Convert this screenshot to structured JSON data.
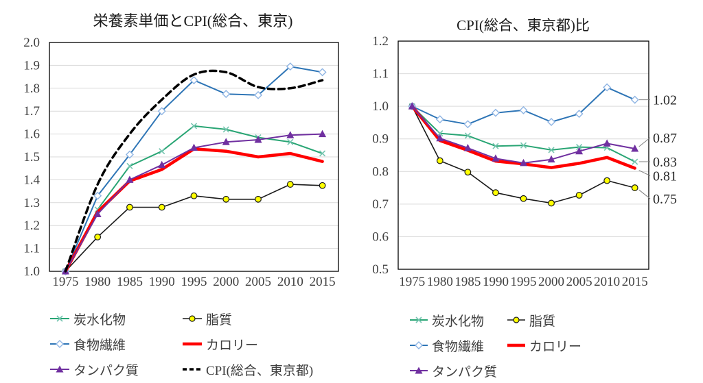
{
  "figure_background": "#FFFFFF",
  "chart_data": [
    {
      "type": "line",
      "title": "栄養素単価とCPI(総合、東京)",
      "x": [
        1975,
        1980,
        1985,
        1990,
        1995,
        2000,
        2005,
        2010,
        2015
      ],
      "xtick_labels": [
        "1975",
        "1980",
        "1985",
        "1990",
        "1995",
        "2000",
        "2005",
        "2010",
        "2015"
      ],
      "ylim": [
        1.0,
        2.0
      ],
      "ytick_labels": [
        "2.0",
        "1.9",
        "1.8",
        "1.7",
        "1.6",
        "1.5",
        "1.4",
        "1.3",
        "1.2",
        "1.1",
        "1.0"
      ],
      "grid": true,
      "legend_position": "bottom",
      "series": [
        {
          "name": "脂質",
          "color": "#1A1A1A",
          "width": 1.6,
          "marker": "circle",
          "marker_fill": "#FFFF00",
          "marker_stroke": "#1A1A1A",
          "values": [
            1.0,
            1.15,
            1.28,
            1.28,
            1.33,
            1.315,
            1.315,
            1.38,
            1.375
          ]
        },
        {
          "name": "炭水化物",
          "color": "#29A574",
          "width": 2,
          "marker": "x",
          "marker_stroke": "#76C5B0",
          "values": [
            1.0,
            1.27,
            1.46,
            1.525,
            1.635,
            1.62,
            1.585,
            1.565,
            1.515
          ]
        },
        {
          "name": "食物繊維",
          "color": "#2E75B6",
          "width": 2,
          "marker": "diamond",
          "marker_fill": "#FFFFFF",
          "marker_stroke": "#8EB4E3",
          "values": [
            1.0,
            1.33,
            1.51,
            1.7,
            1.835,
            1.775,
            1.77,
            1.895,
            1.87
          ]
        },
        {
          "name": "カロリー",
          "color": "#FF0000",
          "width": 4.5,
          "marker": "none",
          "values": [
            1.0,
            1.26,
            1.395,
            1.445,
            1.535,
            1.525,
            1.5,
            1.515,
            1.48
          ]
        },
        {
          "name": "タンパク質",
          "color": "#7030A0",
          "width": 2,
          "marker": "triangle",
          "marker_fill": "#7030A0",
          "values": [
            1.0,
            1.25,
            1.4,
            1.465,
            1.54,
            1.565,
            1.575,
            1.595,
            1.6
          ]
        },
        {
          "name": "CPI(総合、東京都)",
          "color": "#000000",
          "width": 3.5,
          "dash": "9 6",
          "smooth": true,
          "marker": "none",
          "values": [
            1.0,
            1.38,
            1.6,
            1.75,
            1.86,
            1.87,
            1.805,
            1.8,
            1.835
          ]
        }
      ]
    },
    {
      "type": "line",
      "title": "CPI(総合、東京都)比",
      "x": [
        1975,
        1980,
        1985,
        1990,
        1995,
        2000,
        2005,
        2010,
        2015
      ],
      "xtick_labels": [
        "1975",
        "1980",
        "1985",
        "1990",
        "1995",
        "2000",
        "2005",
        "2010",
        "2015"
      ],
      "ylim": [
        0.5,
        1.2
      ],
      "ytick_labels": [
        "1.2",
        "1.1",
        "1.0",
        "0.9",
        "0.8",
        "0.7",
        "0.6",
        "0.5"
      ],
      "grid": true,
      "legend_position": "bottom",
      "series": [
        {
          "name": "脂質",
          "color": "#1A1A1A",
          "width": 1.6,
          "marker": "circle",
          "marker_fill": "#FFFF00",
          "marker_stroke": "#1A1A1A",
          "values": [
            1.0,
            0.833,
            0.798,
            0.735,
            0.717,
            0.703,
            0.727,
            0.772,
            0.75
          ]
        },
        {
          "name": "炭水化物",
          "color": "#29A574",
          "width": 2,
          "marker": "x",
          "marker_stroke": "#76C5B0",
          "values": [
            1.0,
            0.917,
            0.91,
            0.878,
            0.88,
            0.866,
            0.875,
            0.873,
            0.83
          ]
        },
        {
          "name": "食物繊維",
          "color": "#2E75B6",
          "width": 2,
          "marker": "diamond",
          "marker_fill": "#FFFFFF",
          "marker_stroke": "#8EB4E3",
          "values": [
            1.0,
            0.96,
            0.945,
            0.98,
            0.988,
            0.952,
            0.977,
            1.058,
            1.02
          ]
        },
        {
          "name": "カロリー",
          "color": "#FF0000",
          "width": 4.5,
          "marker": "none",
          "values": [
            1.0,
            0.895,
            0.865,
            0.832,
            0.823,
            0.812,
            0.825,
            0.843,
            0.81
          ]
        },
        {
          "name": "タンパク質",
          "color": "#7030A0",
          "width": 2,
          "marker": "triangle",
          "marker_fill": "#7030A0",
          "values": [
            1.0,
            0.902,
            0.872,
            0.84,
            0.826,
            0.837,
            0.862,
            0.886,
            0.87
          ]
        }
      ],
      "end_labels": [
        {
          "text": "1.02",
          "series": "食物繊維"
        },
        {
          "text": "0.87",
          "series": "タンパク質"
        },
        {
          "text": "0.83",
          "series": "炭水化物"
        },
        {
          "text": "0.81",
          "series": "カロリー"
        },
        {
          "text": "0.75",
          "series": "脂質"
        }
      ]
    }
  ],
  "legends": {
    "left": [
      "炭水化物",
      "脂質",
      "食物繊維",
      "カロリー",
      "タンパク質",
      "CPI(総合、東京都)"
    ],
    "right": [
      "炭水化物",
      "脂質",
      "食物繊維",
      "カロリー",
      "タンパク質"
    ]
  },
  "colors": {
    "carbohydrate": "#29A574",
    "fat_marker": "#FFFF00",
    "fiber": "#2E75B6",
    "calorie": "#FF0000",
    "protein": "#7030A0",
    "cpi_line": "#000000",
    "gridline": "#D9D9D9",
    "axis_text": "#404040"
  }
}
